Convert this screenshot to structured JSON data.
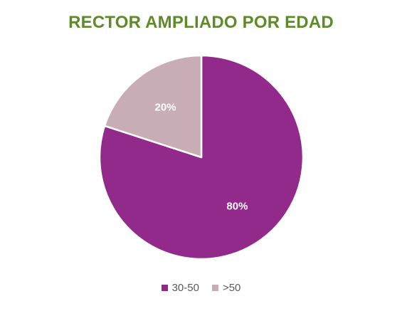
{
  "chart_data": {
    "type": "pie",
    "title": "RECTOR AMPLIADO POR EDAD",
    "slices": [
      {
        "name": "30-50",
        "value": 80,
        "label": "80%",
        "color": "#912a8b"
      },
      {
        "name": ">50",
        "value": 20,
        "label": "20%",
        "color": "#c8adb6"
      }
    ],
    "legend": "bottom",
    "title_color": "#5e8a2a",
    "label_color": "#ffffff"
  }
}
